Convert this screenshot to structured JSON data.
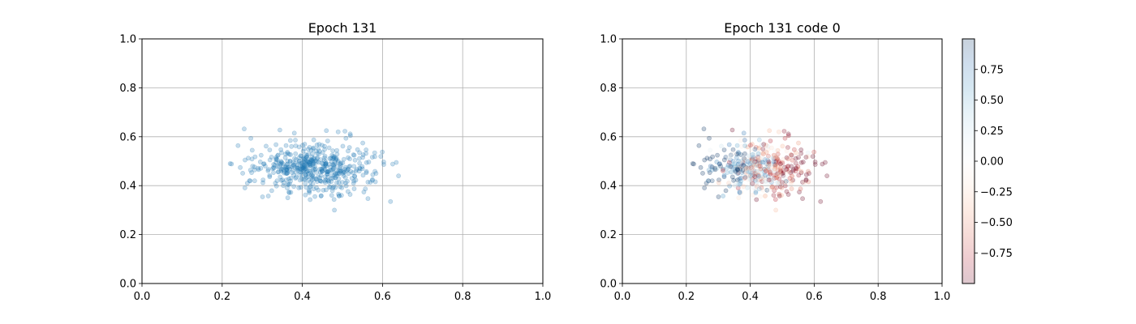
{
  "chart_data": [
    {
      "type": "scatter",
      "title": "Epoch 131",
      "xlabel": "",
      "ylabel": "",
      "xlim": [
        0.0,
        1.0
      ],
      "ylim": [
        0.0,
        1.0
      ],
      "xticks": [
        "0.0",
        "0.2",
        "0.4",
        "0.6",
        "0.8",
        "1.0"
      ],
      "yticks": [
        "0.0",
        "0.2",
        "0.4",
        "0.6",
        "0.8",
        "1.0"
      ],
      "grid": true,
      "marker_color": "#1f77b4",
      "marker_alpha": 0.25,
      "point_count": 500,
      "x_range": [
        0.22,
        0.64
      ],
      "y_range": [
        0.3,
        0.63
      ],
      "sample_points": [
        [
          0.255,
          0.632
        ],
        [
          0.22,
          0.49
        ],
        [
          0.64,
          0.44
        ],
        [
          0.48,
          0.3
        ],
        [
          0.62,
          0.335
        ],
        [
          0.46,
          0.625
        ],
        [
          0.38,
          0.615
        ],
        [
          0.52,
          0.605
        ]
      ]
    },
    {
      "type": "scatter",
      "title": "Epoch 131 code 0",
      "xlabel": "",
      "ylabel": "",
      "xlim": [
        0.0,
        1.0
      ],
      "ylim": [
        0.0,
        1.0
      ],
      "xticks": [
        "0.0",
        "0.2",
        "0.4",
        "0.6",
        "0.8",
        "1.0"
      ],
      "yticks": [
        "0.0",
        "0.2",
        "0.4",
        "0.6",
        "0.8",
        "1.0"
      ],
      "grid": true,
      "colormap": "RdBu",
      "marker_alpha": 0.25,
      "color_value_range": [
        -1.0,
        1.0
      ],
      "colorbar": {
        "ticks": [
          "0.75",
          "0.50",
          "0.25",
          "0.00",
          "−0.25",
          "−0.50",
          "−0.75"
        ],
        "tick_values": [
          0.75,
          0.5,
          0.25,
          0.0,
          -0.25,
          -0.5,
          -0.75
        ],
        "range": [
          -1.0,
          1.0
        ]
      }
    }
  ]
}
